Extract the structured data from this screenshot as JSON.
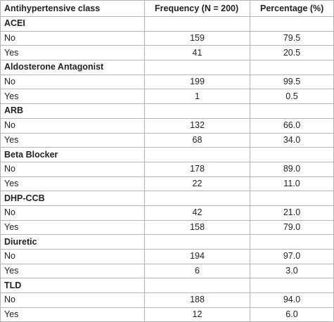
{
  "table": {
    "header": [
      "Antihypertensive class",
      "Frequency (N = 200)",
      "Percentage (%)"
    ],
    "groups": [
      {
        "name": "ACEI",
        "rows": [
          [
            "No",
            "159",
            "79.5"
          ],
          [
            "Yes",
            "41",
            "20.5"
          ]
        ]
      },
      {
        "name": "Aldosterone Antagonist",
        "rows": [
          [
            "No",
            "199",
            "99.5"
          ],
          [
            "Yes",
            "1",
            "0.5"
          ]
        ]
      },
      {
        "name": "ARB",
        "rows": [
          [
            "No",
            "132",
            "66.0"
          ],
          [
            "Yes",
            "68",
            "34.0"
          ]
        ]
      },
      {
        "name": "Beta Blocker",
        "rows": [
          [
            "No",
            "178",
            "89.0"
          ],
          [
            "Yes",
            "22",
            "11.0"
          ]
        ]
      },
      {
        "name": "DHP-CCB",
        "rows": [
          [
            "No",
            "42",
            "21.0"
          ],
          [
            "Yes",
            "158",
            "79.0"
          ]
        ]
      },
      {
        "name": "Diuretic",
        "rows": [
          [
            "No",
            "194",
            "97.0"
          ],
          [
            "Yes",
            "6",
            "3.0"
          ]
        ]
      },
      {
        "name": "TLD",
        "rows": [
          [
            "No",
            "188",
            "94.0"
          ],
          [
            "Yes",
            "12",
            "6.0"
          ]
        ]
      }
    ]
  }
}
